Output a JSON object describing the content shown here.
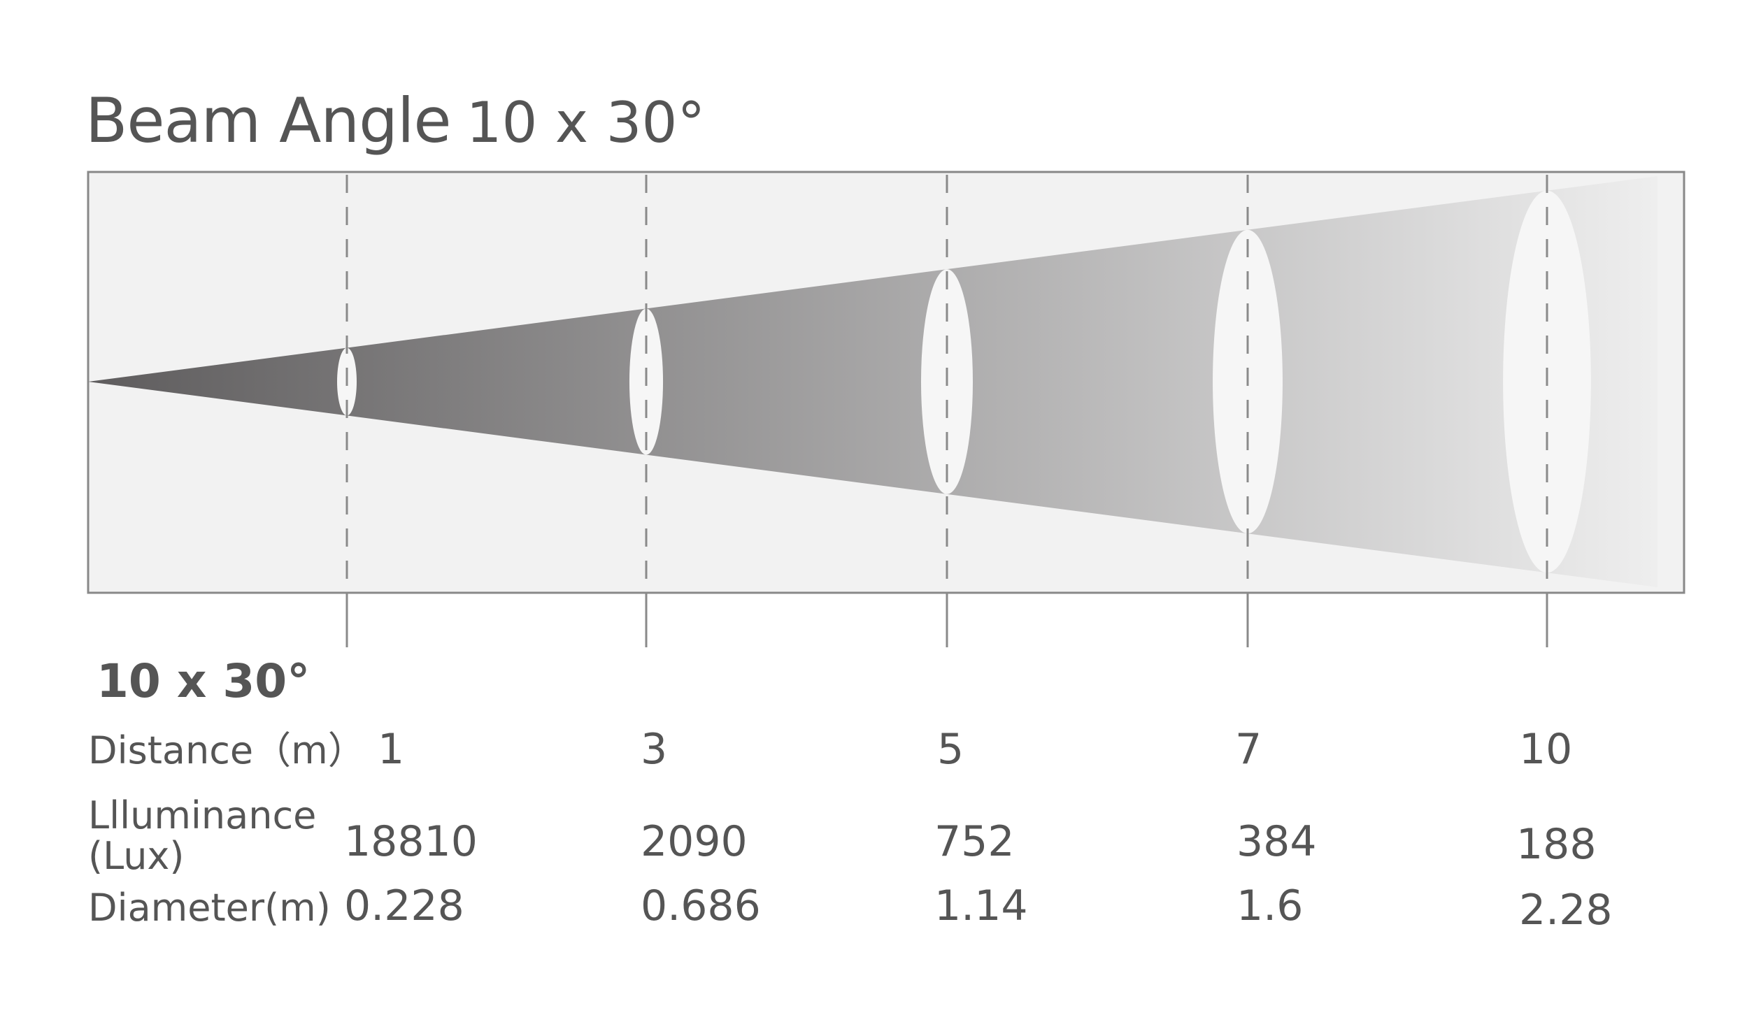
{
  "title": {
    "main": "Beam Angle",
    "angle": "10 x 30°"
  },
  "table": {
    "angle_label": "10 x 30°",
    "distance_label": "Distance（m）",
    "illuminance_label_line1": "Llluminance",
    "illuminance_label_line2": "(Lux)",
    "diameter_label": "Diameter(m)",
    "distances": [
      "1",
      "3",
      "5",
      "7",
      "10"
    ],
    "illuminance": [
      "18810",
      "2090",
      "752",
      "384",
      "188"
    ],
    "diameters": [
      "0.228",
      "0.686",
      "1.14",
      "1.6",
      "2.28"
    ]
  },
  "colors": {
    "frame_fill": "#f2f2f2",
    "frame_border": "#888888",
    "beam_dark": "#5e5c5d",
    "beam_light": "#f0f0f0",
    "ellipse": "#f6f6f6",
    "dash": "#8a8a8a",
    "text": "#555555"
  }
}
